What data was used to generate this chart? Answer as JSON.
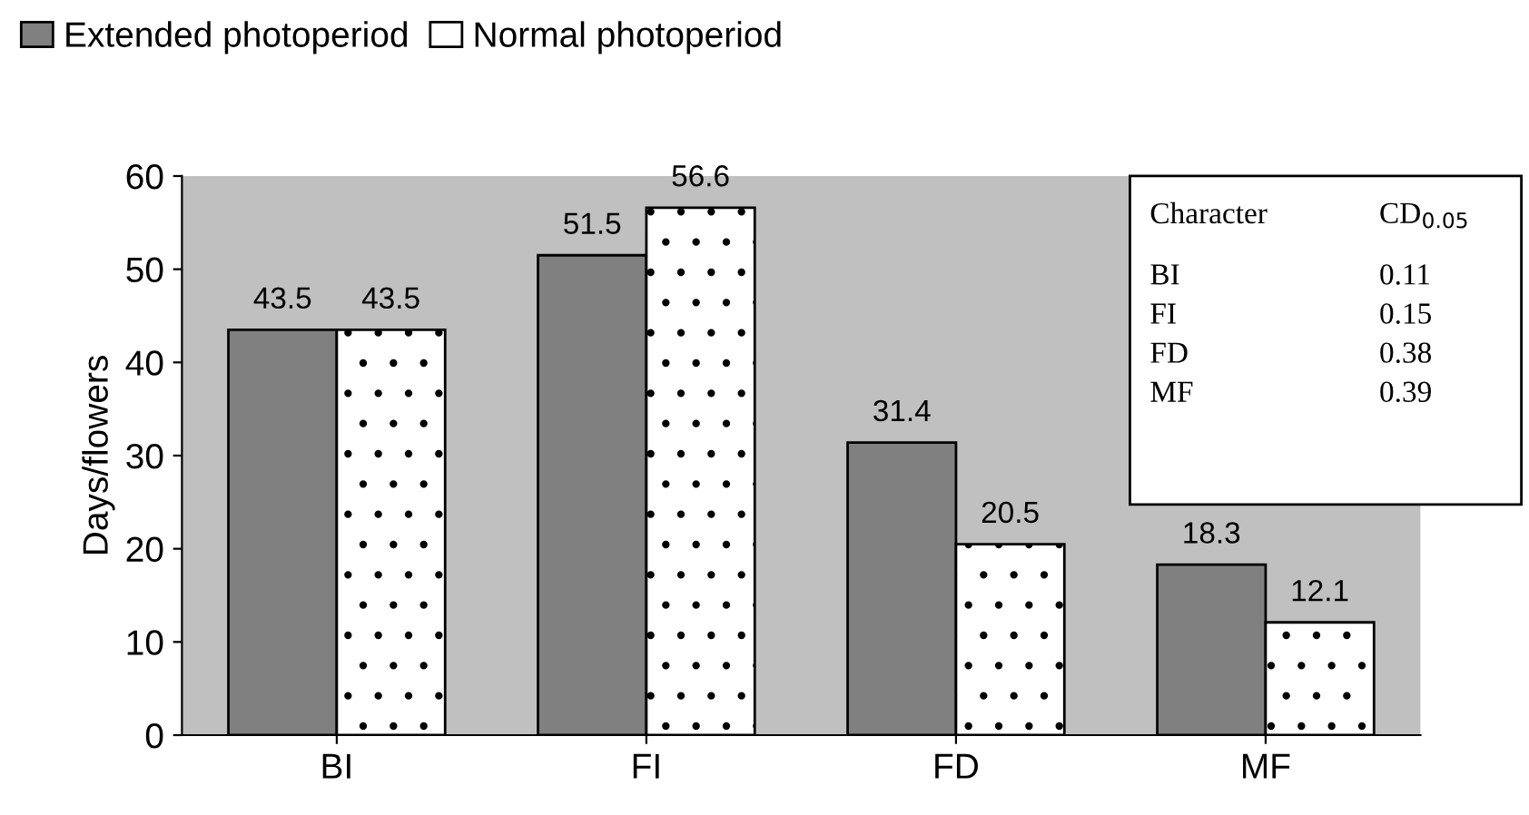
{
  "chart_data": {
    "type": "bar",
    "categories": [
      "BI",
      "FI",
      "FD",
      "MF"
    ],
    "series": [
      {
        "name": "Extended photoperiod",
        "color": "#808080",
        "values": [
          43.5,
          51.5,
          31.4,
          18.3
        ]
      },
      {
        "name": "Normal photoperiod",
        "color": "#ffffff",
        "values": [
          43.5,
          56.6,
          20.5,
          12.1
        ]
      }
    ],
    "ylabel": "Days/flowers",
    "ylim": [
      0,
      60
    ],
    "yticks": [
      0,
      10,
      20,
      30,
      40,
      50,
      60
    ],
    "data_labels": true,
    "legend": "top left",
    "grid": false,
    "annotations": [
      "Character",
      "CD$_{0.05}$",
      "BI",
      "0.11",
      "FI",
      "0.15",
      "FD",
      "0.38",
      "MF",
      "0.39"
    ]
  }
}
